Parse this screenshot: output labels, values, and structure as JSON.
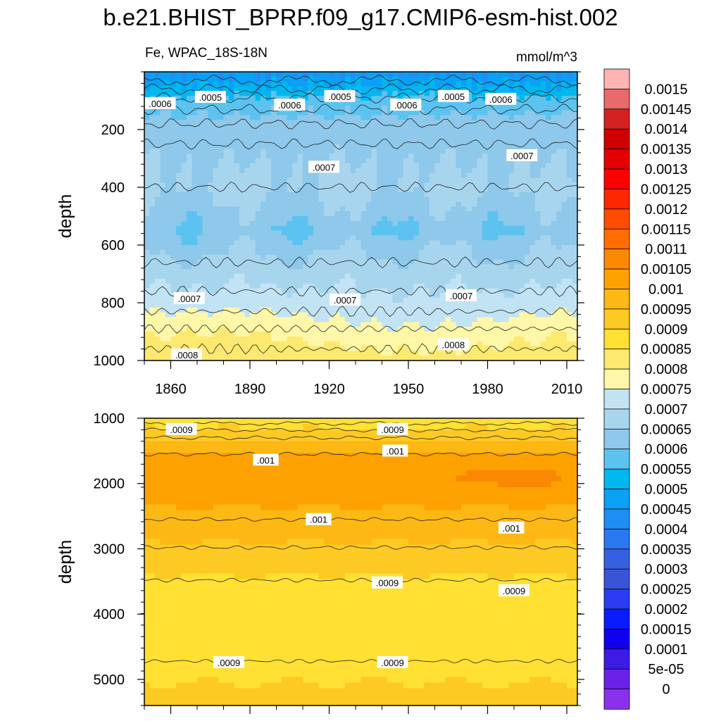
{
  "title": "b.e21.BHIST_BPRP.f09_g17.CMIP6-esm-hist.002",
  "left_subtitle": "Fe, WPAC_18S-18N",
  "right_subtitle": "mmol/m^3",
  "chart_data": [
    {
      "type": "heatmap",
      "panel": "upper",
      "variable": "Fe",
      "region": "WPAC_18S-18N",
      "units": "mmol/m^3",
      "ylabel": "depth",
      "xlim": [
        1850,
        2014
      ],
      "ylim": [
        1000,
        0
      ],
      "x_ticks": [
        1860,
        1890,
        1920,
        1950,
        1980,
        2010
      ],
      "x_tick_labels": [
        "1860",
        "1890",
        "1920",
        "1950",
        "1980",
        "2010"
      ],
      "y_ticks": [
        200,
        400,
        600,
        800,
        1000
      ],
      "y_tick_labels": [
        "200",
        "400",
        "600",
        "800",
        "1000"
      ],
      "depth_profile": [
        {
          "depth": 0,
          "value": 0.00045
        },
        {
          "depth": 50,
          "value": 0.0005
        },
        {
          "depth": 100,
          "value": 0.00057
        },
        {
          "depth": 200,
          "value": 0.00063
        },
        {
          "depth": 400,
          "value": 0.00066
        },
        {
          "depth": 550,
          "value": 0.00061
        },
        {
          "depth": 700,
          "value": 0.00068
        },
        {
          "depth": 800,
          "value": 0.00072
        },
        {
          "depth": 900,
          "value": 0.00078
        },
        {
          "depth": 1000,
          "value": 0.00083
        }
      ],
      "contour_labels": [
        {
          "text": ".0006",
          "year": 1856,
          "depth": 110
        },
        {
          "text": ".0005",
          "year": 1875,
          "depth": 88
        },
        {
          "text": ".0006",
          "year": 1905,
          "depth": 115
        },
        {
          "text": ".0005",
          "year": 1924,
          "depth": 85
        },
        {
          "text": ".0006",
          "year": 1949,
          "depth": 115
        },
        {
          "text": ".0005",
          "year": 1967,
          "depth": 85
        },
        {
          "text": ".0006",
          "year": 1985,
          "depth": 95
        },
        {
          "text": ".0007",
          "year": 1918,
          "depth": 330
        },
        {
          "text": ".0007",
          "year": 1993,
          "depth": 290
        },
        {
          "text": ".0007",
          "year": 1867,
          "depth": 785
        },
        {
          "text": ".0007",
          "year": 1926,
          "depth": 790
        },
        {
          "text": ".0007",
          "year": 1970,
          "depth": 775
        },
        {
          "text": ".0008",
          "year": 1967,
          "depth": 945
        },
        {
          "text": ".0008",
          "year": 1866,
          "depth": 980
        }
      ]
    },
    {
      "type": "heatmap",
      "panel": "lower",
      "variable": "Fe",
      "units": "mmol/m^3",
      "ylabel": "depth",
      "xlim": [
        1850,
        2014
      ],
      "ylim": [
        5400,
        1000
      ],
      "y_ticks": [
        1000,
        2000,
        3000,
        4000,
        5000
      ],
      "y_tick_labels": [
        "1000",
        "2000",
        "3000",
        "4000",
        "5000"
      ],
      "depth_profile": [
        {
          "depth": 1000,
          "value": 0.00086
        },
        {
          "depth": 1250,
          "value": 0.00093
        },
        {
          "depth": 1600,
          "value": 0.00102
        },
        {
          "depth": 2000,
          "value": 0.00103
        },
        {
          "depth": 2600,
          "value": 0.00098
        },
        {
          "depth": 3000,
          "value": 0.00094
        },
        {
          "depth": 3500,
          "value": 0.00089
        },
        {
          "depth": 4700,
          "value": 0.00088
        },
        {
          "depth": 5400,
          "value": 0.00092
        }
      ],
      "contour_labels": [
        {
          "text": ".0009",
          "year": 1864,
          "depth": 1170
        },
        {
          "text": ".0009",
          "year": 1944,
          "depth": 1170
        },
        {
          "text": ".001",
          "year": 1896,
          "depth": 1640
        },
        {
          "text": ".001",
          "year": 1945,
          "depth": 1500
        },
        {
          "text": ".001",
          "year": 1916,
          "depth": 2550
        },
        {
          "text": ".001",
          "year": 1989,
          "depth": 2680
        },
        {
          "text": ".0009",
          "year": 1942,
          "depth": 3520
        },
        {
          "text": ".0009",
          "year": 1990,
          "depth": 3640
        },
        {
          "text": ".0009",
          "year": 1882,
          "depth": 4740
        },
        {
          "text": ".0009",
          "year": 1944,
          "depth": 4740
        }
      ]
    }
  ],
  "colorbar": {
    "labels": [
      "0.0015",
      "0.00145",
      "0.0014",
      "0.00135",
      "0.0013",
      "0.00125",
      "0.0012",
      "0.00115",
      "0.0011",
      "0.00105",
      "0.001",
      "0.00095",
      "0.0009",
      "0.00085",
      "0.0008",
      "0.00075",
      "0.0007",
      "0.00065",
      "0.0006",
      "0.00055",
      "0.0005",
      "0.00045",
      "0.0004",
      "0.00035",
      "0.0003",
      "0.00025",
      "0.0002",
      "0.00015",
      "0.0001",
      "5e-05",
      "0"
    ],
    "colors": [
      "#ffb3b3",
      "#e86a6a",
      "#d42222",
      "#cf0000",
      "#e30000",
      "#ff0000",
      "#ff2600",
      "#ff4d00",
      "#ff6d00",
      "#fa8800",
      "#fda100",
      "#fdb814",
      "#fdc923",
      "#ffe033",
      "#fde970",
      "#fff7a8",
      "#c2e3f4",
      "#a8d5ee",
      "#8ec8eb",
      "#5cc3f0",
      "#00b8ef",
      "#0aa0f5",
      "#1e8ef5",
      "#2a78f0",
      "#3561e0",
      "#3a54d8",
      "#2a3cf0",
      "#0b1bff",
      "#1000ee",
      "#3d1ae6",
      "#6a22e8",
      "#8b31ea"
    ]
  }
}
